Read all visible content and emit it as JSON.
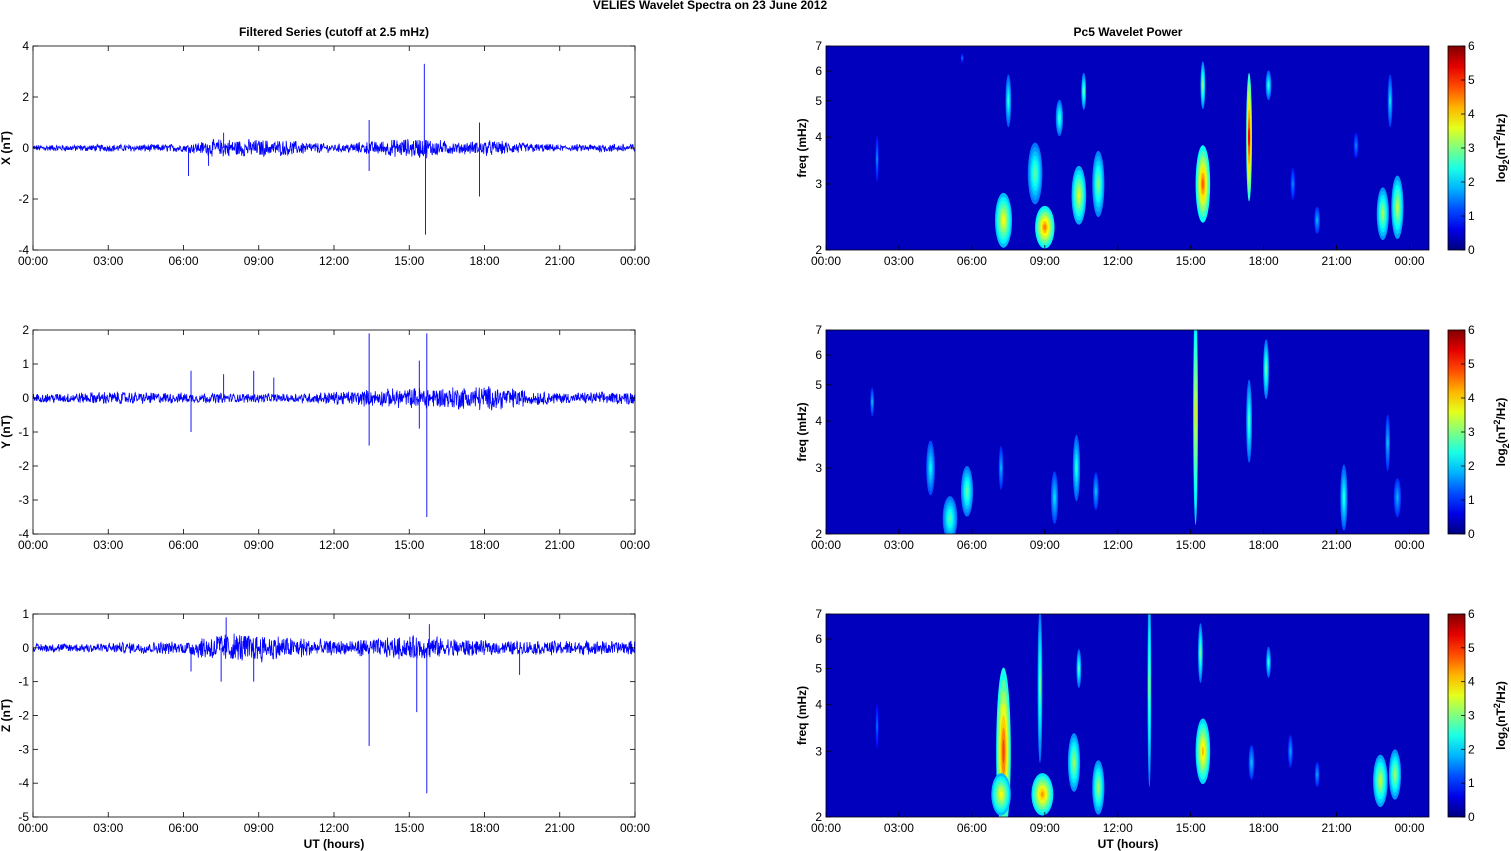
{
  "figure": {
    "title": "VELIES Wavelet Spectra on 23 June      2012",
    "left_title": "Filtered Series (cutoff at 2.5 mHz)",
    "right_title": "Pc5 Wavelet Power",
    "xlabel": "UT (hours)",
    "freq_label": "freq (mHz)",
    "cbar_label": "log2(nT2/Hz)"
  },
  "time_ticks": [
    "00:00",
    "03:00",
    "06:00",
    "09:00",
    "12:00",
    "15:00",
    "18:00",
    "21:00",
    "00:00"
  ],
  "chart_data": [
    {
      "type": "line",
      "ylabel": "X (nT)",
      "xlim": [
        0,
        24
      ],
      "ylim": [
        -4,
        4
      ],
      "yticks": [
        -4,
        -2,
        0,
        2,
        4
      ],
      "color": "#0000ff",
      "baseline_amplitude": [
        {
          "t": 0,
          "a": 0.12
        },
        {
          "t": 6,
          "a": 0.15
        },
        {
          "t": 7.5,
          "a": 0.35
        },
        {
          "t": 10,
          "a": 0.3
        },
        {
          "t": 12,
          "a": 0.15
        },
        {
          "t": 15.5,
          "a": 0.4
        },
        {
          "t": 17,
          "a": 0.2
        },
        {
          "t": 18,
          "a": 0.3
        },
        {
          "t": 21,
          "a": 0.12
        },
        {
          "t": 24,
          "a": 0.18
        }
      ],
      "spikes": [
        {
          "t": 6.2,
          "v": -1.1
        },
        {
          "t": 7.0,
          "v": -0.7
        },
        {
          "t": 7.6,
          "v": 0.6
        },
        {
          "t": 13.4,
          "v": 1.1
        },
        {
          "t": 13.4,
          "v": -0.9
        },
        {
          "t": 15.6,
          "v": 3.3
        },
        {
          "t": 15.65,
          "v": -3.4
        },
        {
          "t": 17.8,
          "v": 1.0
        },
        {
          "t": 17.8,
          "v": -1.9
        }
      ]
    },
    {
      "type": "line",
      "ylabel": "Y (nT)",
      "xlim": [
        0,
        24
      ],
      "ylim": [
        -4,
        2
      ],
      "yticks": [
        -4,
        -3,
        -2,
        -1,
        0,
        1,
        2
      ],
      "color": "#0000ff",
      "baseline_amplitude": [
        {
          "t": 0,
          "a": 0.12
        },
        {
          "t": 3,
          "a": 0.18
        },
        {
          "t": 6,
          "a": 0.15
        },
        {
          "t": 10,
          "a": 0.12
        },
        {
          "t": 15.5,
          "a": 0.3
        },
        {
          "t": 18,
          "a": 0.35
        },
        {
          "t": 21,
          "a": 0.15
        },
        {
          "t": 24,
          "a": 0.18
        }
      ],
      "spikes": [
        {
          "t": 6.3,
          "v": 0.8
        },
        {
          "t": 6.3,
          "v": -1.0
        },
        {
          "t": 7.6,
          "v": 0.7
        },
        {
          "t": 8.8,
          "v": 0.8
        },
        {
          "t": 9.6,
          "v": 0.6
        },
        {
          "t": 13.4,
          "v": 1.9
        },
        {
          "t": 13.4,
          "v": -1.4
        },
        {
          "t": 15.4,
          "v": 1.1
        },
        {
          "t": 15.4,
          "v": -0.9
        },
        {
          "t": 15.7,
          "v": 1.9
        },
        {
          "t": 15.7,
          "v": -3.5
        }
      ]
    },
    {
      "type": "line",
      "ylabel": "Z (nT)",
      "xlim": [
        0,
        24
      ],
      "ylim": [
        -5,
        1
      ],
      "yticks": [
        -5,
        -4,
        -3,
        -2,
        -1,
        0,
        1
      ],
      "color": "#0000ff",
      "baseline_amplitude": [
        {
          "t": 0,
          "a": 0.12
        },
        {
          "t": 6,
          "a": 0.18
        },
        {
          "t": 7.5,
          "a": 0.45
        },
        {
          "t": 10,
          "a": 0.35
        },
        {
          "t": 12,
          "a": 0.2
        },
        {
          "t": 15.6,
          "a": 0.35
        },
        {
          "t": 18,
          "a": 0.2
        },
        {
          "t": 24,
          "a": 0.2
        }
      ],
      "spikes": [
        {
          "t": 6.3,
          "v": -0.7
        },
        {
          "t": 7.5,
          "v": -1.0
        },
        {
          "t": 7.7,
          "v": 0.9
        },
        {
          "t": 8.8,
          "v": -1.0
        },
        {
          "t": 13.4,
          "v": -2.9
        },
        {
          "t": 15.3,
          "v": -1.9
        },
        {
          "t": 15.7,
          "v": -4.3
        },
        {
          "t": 15.8,
          "v": 0.7
        },
        {
          "t": 19.4,
          "v": -0.8
        }
      ]
    },
    {
      "type": "heatmap",
      "ylabel": "freq (mHz)",
      "xlim": [
        0,
        24.8
      ],
      "ylim": [
        2,
        7
      ],
      "yscale": "log",
      "yticks": [
        2,
        3,
        4,
        5,
        6,
        7
      ],
      "colorbar": {
        "min": 0,
        "max": 6,
        "ticks": [
          0,
          1,
          2,
          3,
          4,
          5,
          6
        ],
        "colormap": "jet"
      },
      "blobs": [
        {
          "t": 2.1,
          "f": 3.5,
          "w": 0.07,
          "h": 0.5,
          "v": 1.2
        },
        {
          "t": 5.6,
          "f": 6.5,
          "w": 0.06,
          "h": 0.2,
          "v": 1.0
        },
        {
          "t": 7.3,
          "f": 2.4,
          "w": 0.35,
          "h": 0.4,
          "v": 3.6
        },
        {
          "t": 7.5,
          "f": 5.0,
          "w": 0.12,
          "h": 0.8,
          "v": 2.2
        },
        {
          "t": 8.6,
          "f": 3.2,
          "w": 0.3,
          "h": 0.6,
          "v": 2.6
        },
        {
          "t": 9.0,
          "f": 2.3,
          "w": 0.4,
          "h": 0.3,
          "v": 4.4
        },
        {
          "t": 9.6,
          "f": 4.5,
          "w": 0.15,
          "h": 0.5,
          "v": 2.4
        },
        {
          "t": 10.4,
          "f": 2.8,
          "w": 0.3,
          "h": 0.5,
          "v": 3.4
        },
        {
          "t": 10.6,
          "f": 5.3,
          "w": 0.1,
          "h": 0.6,
          "v": 2.6
        },
        {
          "t": 11.2,
          "f": 3.0,
          "w": 0.25,
          "h": 0.6,
          "v": 2.8
        },
        {
          "t": 15.5,
          "f": 3.0,
          "w": 0.3,
          "h": 0.7,
          "v": 4.6
        },
        {
          "t": 15.5,
          "f": 5.5,
          "w": 0.1,
          "h": 0.8,
          "v": 2.8
        },
        {
          "t": 17.4,
          "f": 4.0,
          "w": 0.12,
          "h": 1.5,
          "v": 5.2
        },
        {
          "t": 18.2,
          "f": 5.5,
          "w": 0.12,
          "h": 0.5,
          "v": 2.2
        },
        {
          "t": 19.2,
          "f": 3.0,
          "w": 0.1,
          "h": 0.3,
          "v": 1.2
        },
        {
          "t": 20.2,
          "f": 2.4,
          "w": 0.12,
          "h": 0.2,
          "v": 1.5
        },
        {
          "t": 21.8,
          "f": 3.8,
          "w": 0.1,
          "h": 0.3,
          "v": 1.2
        },
        {
          "t": 22.9,
          "f": 2.5,
          "w": 0.25,
          "h": 0.4,
          "v": 3.0
        },
        {
          "t": 23.2,
          "f": 5.0,
          "w": 0.1,
          "h": 0.8,
          "v": 1.8
        },
        {
          "t": 23.5,
          "f": 2.6,
          "w": 0.25,
          "h": 0.5,
          "v": 3.2
        }
      ]
    },
    {
      "type": "heatmap",
      "ylabel": "freq (mHz)",
      "xlim": [
        0,
        24.8
      ],
      "ylim": [
        2,
        7
      ],
      "yscale": "log",
      "yticks": [
        2,
        3,
        4,
        5,
        6,
        7
      ],
      "colorbar": {
        "min": 0,
        "max": 6,
        "ticks": [
          0,
          1,
          2,
          3,
          4,
          5,
          6
        ],
        "colormap": "jet"
      },
      "blobs": [
        {
          "t": 1.9,
          "f": 4.5,
          "w": 0.08,
          "h": 0.4,
          "v": 1.5
        },
        {
          "t": 4.3,
          "f": 3.0,
          "w": 0.18,
          "h": 0.5,
          "v": 2.0
        },
        {
          "t": 5.1,
          "f": 2.2,
          "w": 0.3,
          "h": 0.3,
          "v": 2.5
        },
        {
          "t": 5.8,
          "f": 2.6,
          "w": 0.25,
          "h": 0.4,
          "v": 2.6
        },
        {
          "t": 7.2,
          "f": 3.0,
          "w": 0.1,
          "h": 0.4,
          "v": 1.5
        },
        {
          "t": 9.4,
          "f": 2.5,
          "w": 0.15,
          "h": 0.4,
          "v": 1.8
        },
        {
          "t": 10.3,
          "f": 3.0,
          "w": 0.15,
          "h": 0.6,
          "v": 2.2
        },
        {
          "t": 11.1,
          "f": 2.6,
          "w": 0.12,
          "h": 0.3,
          "v": 1.6
        },
        {
          "t": 15.2,
          "f": 4.2,
          "w": 0.1,
          "h": 2.5,
          "v": 3.8
        },
        {
          "t": 17.4,
          "f": 4.0,
          "w": 0.12,
          "h": 1.0,
          "v": 2.4
        },
        {
          "t": 18.1,
          "f": 5.5,
          "w": 0.12,
          "h": 1.0,
          "v": 2.6
        },
        {
          "t": 21.3,
          "f": 2.5,
          "w": 0.15,
          "h": 0.5,
          "v": 2.2
        },
        {
          "t": 23.1,
          "f": 3.5,
          "w": 0.1,
          "h": 0.6,
          "v": 1.6
        },
        {
          "t": 23.5,
          "f": 2.5,
          "w": 0.15,
          "h": 0.3,
          "v": 1.5
        }
      ]
    },
    {
      "type": "heatmap",
      "ylabel": "freq (mHz)",
      "xlim": [
        0,
        24.8
      ],
      "ylim": [
        2,
        7
      ],
      "yscale": "log",
      "yticks": [
        2,
        3,
        4,
        5,
        6,
        7
      ],
      "colorbar": {
        "min": 0,
        "max": 6,
        "ticks": [
          0,
          1,
          2,
          3,
          4,
          5,
          6
        ],
        "colormap": "jet"
      },
      "blobs": [
        {
          "t": 2.1,
          "f": 3.5,
          "w": 0.07,
          "h": 0.5,
          "v": 1.0
        },
        {
          "t": 7.3,
          "f": 3.0,
          "w": 0.3,
          "h": 1.5,
          "v": 4.8
        },
        {
          "t": 7.2,
          "f": 2.3,
          "w": 0.4,
          "h": 0.3,
          "v": 3.6
        },
        {
          "t": 8.9,
          "f": 2.3,
          "w": 0.45,
          "h": 0.3,
          "v": 4.2
        },
        {
          "t": 8.8,
          "f": 4.5,
          "w": 0.1,
          "h": 2.0,
          "v": 2.6
        },
        {
          "t": 10.2,
          "f": 2.8,
          "w": 0.25,
          "h": 0.5,
          "v": 3.0
        },
        {
          "t": 10.4,
          "f": 5.0,
          "w": 0.1,
          "h": 0.6,
          "v": 2.4
        },
        {
          "t": 11.2,
          "f": 2.4,
          "w": 0.25,
          "h": 0.4,
          "v": 3.0
        },
        {
          "t": 13.3,
          "f": 4.5,
          "w": 0.08,
          "h": 2.5,
          "v": 2.8
        },
        {
          "t": 15.5,
          "f": 3.0,
          "w": 0.3,
          "h": 0.6,
          "v": 4.0
        },
        {
          "t": 15.4,
          "f": 5.5,
          "w": 0.1,
          "h": 1.0,
          "v": 2.6
        },
        {
          "t": 17.5,
          "f": 2.8,
          "w": 0.12,
          "h": 0.3,
          "v": 1.6
        },
        {
          "t": 18.2,
          "f": 5.2,
          "w": 0.1,
          "h": 0.5,
          "v": 2.2
        },
        {
          "t": 19.1,
          "f": 3.0,
          "w": 0.1,
          "h": 0.3,
          "v": 1.4
        },
        {
          "t": 20.2,
          "f": 2.6,
          "w": 0.1,
          "h": 0.2,
          "v": 1.4
        },
        {
          "t": 22.8,
          "f": 2.5,
          "w": 0.3,
          "h": 0.4,
          "v": 3.2
        },
        {
          "t": 23.4,
          "f": 2.6,
          "w": 0.25,
          "h": 0.4,
          "v": 3.0
        }
      ]
    }
  ]
}
